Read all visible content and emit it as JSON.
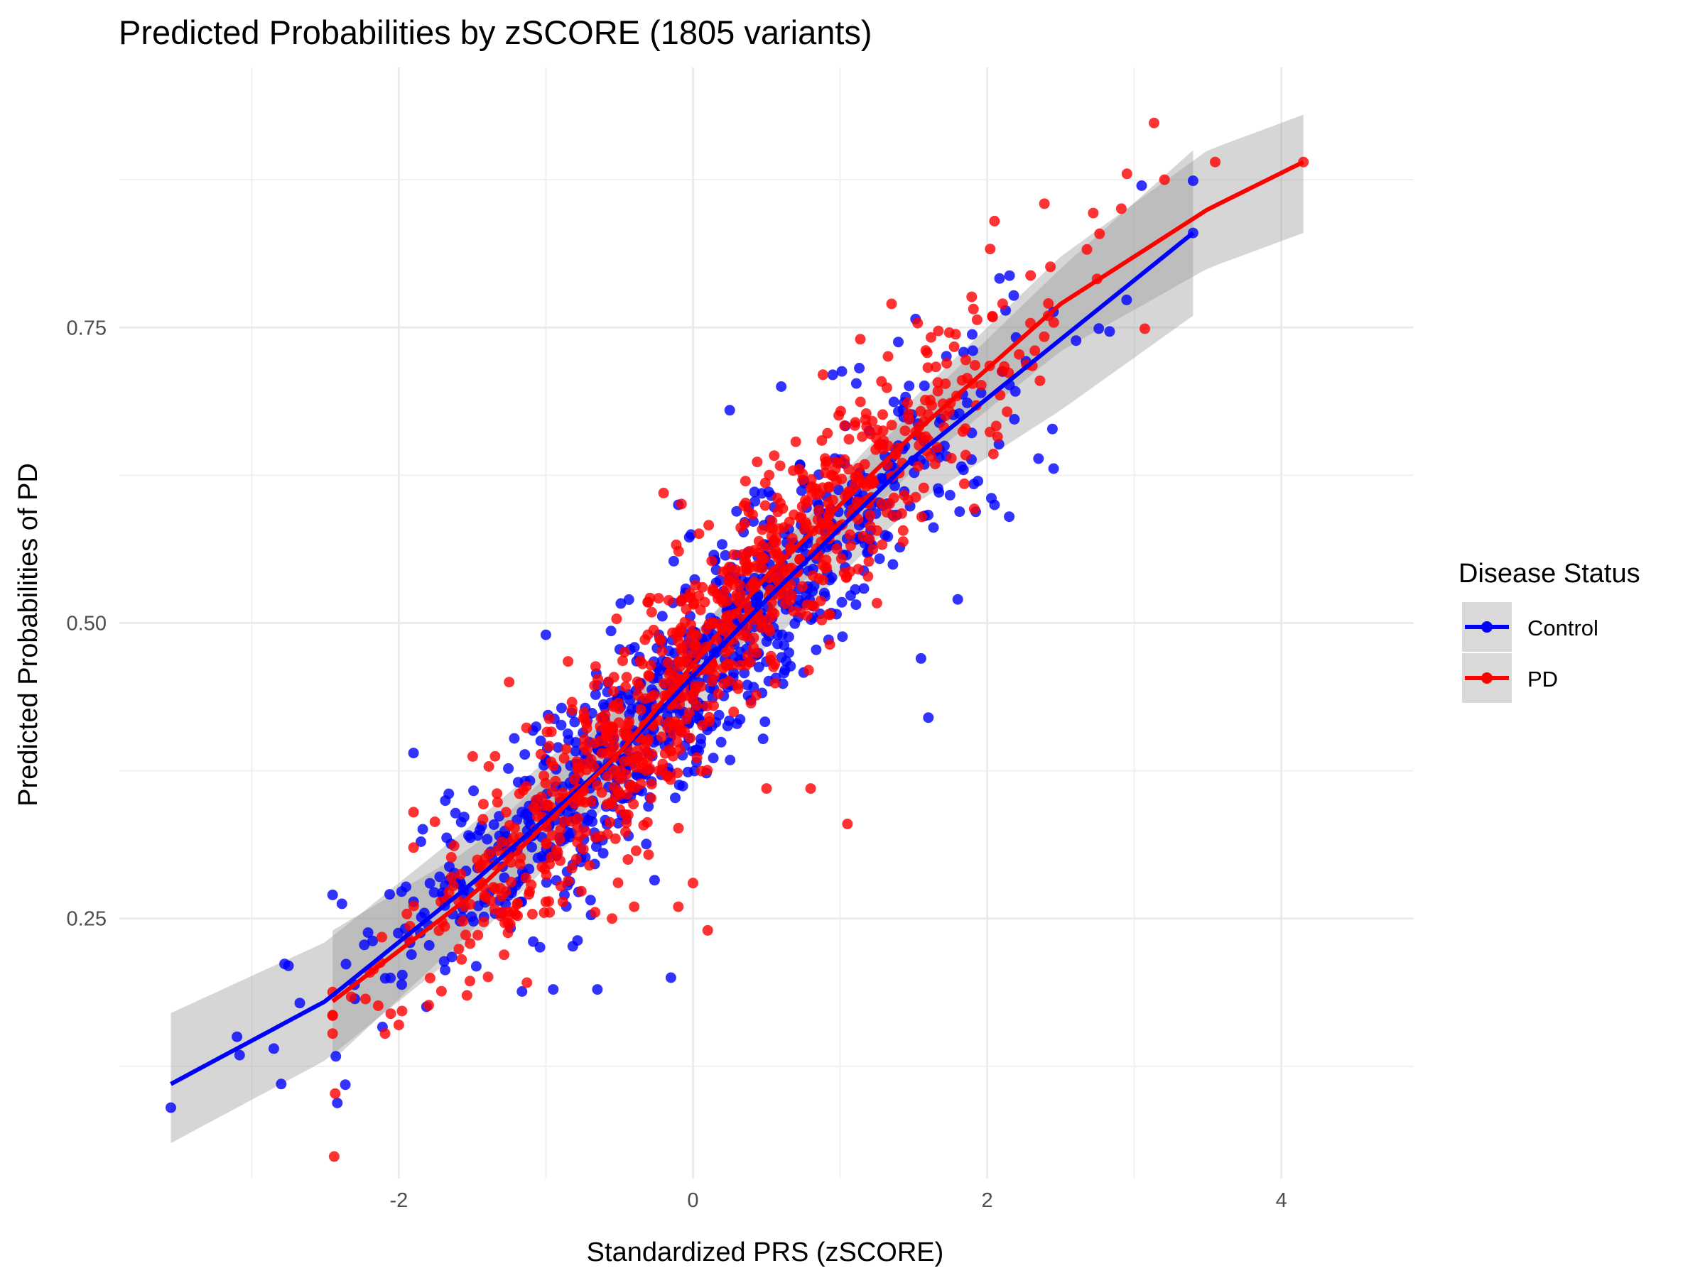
{
  "chart_data": {
    "type": "scatter",
    "title": "Predicted Probabilities by zSCORE (1805 variants)",
    "xlabel": "Standardized PRS (zSCORE)",
    "ylabel": "Predicted Probabilities of PD",
    "xlim": [
      -3.9,
      4.9
    ],
    "ylim": [
      0.03,
      0.97
    ],
    "x_ticks": [
      -2,
      0,
      2,
      4
    ],
    "x_tick_labels": [
      "-2",
      "0",
      "2",
      "4"
    ],
    "y_ticks": [
      0.25,
      0.5,
      0.75
    ],
    "y_tick_labels": [
      "0.25",
      "0.50",
      "0.75"
    ],
    "grid": true,
    "legend": {
      "title": "Disease Status",
      "position": "right",
      "entries": [
        "Control",
        "PD"
      ]
    },
    "n_points": 1805,
    "series": [
      {
        "name": "Control",
        "color": "#0000ff",
        "fit_type": "logistic",
        "fit_x_range": [
          -3.55,
          3.4
        ],
        "fit_points": [
          [
            -3.55,
            0.11
          ],
          [
            -2.5,
            0.18
          ],
          [
            -1.5,
            0.28
          ],
          [
            -0.5,
            0.39
          ],
          [
            0,
            0.455
          ],
          [
            0.5,
            0.52
          ],
          [
            1.5,
            0.64
          ],
          [
            2.5,
            0.74
          ],
          [
            3.4,
            0.83
          ]
        ],
        "ci_band": {
          "lower": [
            [
              -3.55,
              0.06
            ],
            [
              -2.5,
              0.13
            ],
            [
              -1.5,
              0.23
            ],
            [
              0,
              0.42
            ],
            [
              1.5,
              0.6
            ],
            [
              2.5,
              0.68
            ],
            [
              3.4,
              0.76
            ]
          ],
          "upper": [
            [
              -3.55,
              0.17
            ],
            [
              -2.5,
              0.23
            ],
            [
              -1.5,
              0.33
            ],
            [
              0,
              0.49
            ],
            [
              1.5,
              0.68
            ],
            [
              2.5,
              0.8
            ],
            [
              3.4,
              0.9
            ]
          ]
        },
        "outlier_points": [
          [
            -3.55,
            0.09
          ],
          [
            -3.1,
            0.15
          ],
          [
            -2.85,
            0.14
          ],
          [
            -2.75,
            0.21
          ],
          [
            -2.8,
            0.11
          ],
          [
            -2.45,
            0.27
          ],
          [
            -1.9,
            0.39
          ],
          [
            -1.0,
            0.49
          ],
          [
            -0.95,
            0.19
          ],
          [
            -0.65,
            0.19
          ],
          [
            -0.15,
            0.2
          ],
          [
            -0.1,
            0.6
          ],
          [
            0.25,
            0.68
          ],
          [
            0.6,
            0.7
          ],
          [
            0.95,
            0.71
          ],
          [
            1.55,
            0.47
          ],
          [
            1.6,
            0.42
          ],
          [
            1.8,
            0.52
          ],
          [
            2.05,
            0.6
          ],
          [
            2.15,
            0.59
          ],
          [
            3.05,
            0.87
          ],
          [
            3.4,
            0.83
          ]
        ]
      },
      {
        "name": "PD",
        "color": "#ff0000",
        "fit_type": "logistic",
        "fit_x_range": [
          -2.45,
          4.15
        ],
        "fit_points": [
          [
            -2.45,
            0.18
          ],
          [
            -1.5,
            0.27
          ],
          [
            -0.5,
            0.39
          ],
          [
            0,
            0.465
          ],
          [
            0.5,
            0.54
          ],
          [
            1.5,
            0.66
          ],
          [
            2.5,
            0.77
          ],
          [
            3.5,
            0.85
          ],
          [
            4.15,
            0.89
          ]
        ],
        "ci_band": {
          "lower": [
            [
              -2.45,
              0.13
            ],
            [
              -1.5,
              0.24
            ],
            [
              0,
              0.44
            ],
            [
              1.5,
              0.63
            ],
            [
              2.5,
              0.73
            ],
            [
              3.5,
              0.8
            ],
            [
              4.15,
              0.83
            ]
          ],
          "upper": [
            [
              -2.45,
              0.24
            ],
            [
              -1.5,
              0.31
            ],
            [
              0,
              0.49
            ],
            [
              1.5,
              0.69
            ],
            [
              2.5,
              0.81
            ],
            [
              3.5,
              0.9
            ],
            [
              4.15,
              0.93
            ]
          ]
        },
        "outlier_points": [
          [
            -2.0,
            0.16
          ],
          [
            -1.9,
            0.31
          ],
          [
            -1.9,
            0.34
          ],
          [
            -1.25,
            0.45
          ],
          [
            -0.55,
            0.25
          ],
          [
            -0.4,
            0.26
          ],
          [
            -0.2,
            0.61
          ],
          [
            -0.1,
            0.26
          ],
          [
            0.0,
            0.28
          ],
          [
            0.1,
            0.24
          ],
          [
            0.5,
            0.36
          ],
          [
            0.8,
            0.36
          ],
          [
            1.05,
            0.33
          ],
          [
            1.35,
            0.77
          ],
          [
            2.05,
            0.84
          ],
          [
            2.95,
            0.88
          ],
          [
            3.55,
            0.89
          ],
          [
            4.15,
            0.89
          ]
        ]
      }
    ]
  }
}
